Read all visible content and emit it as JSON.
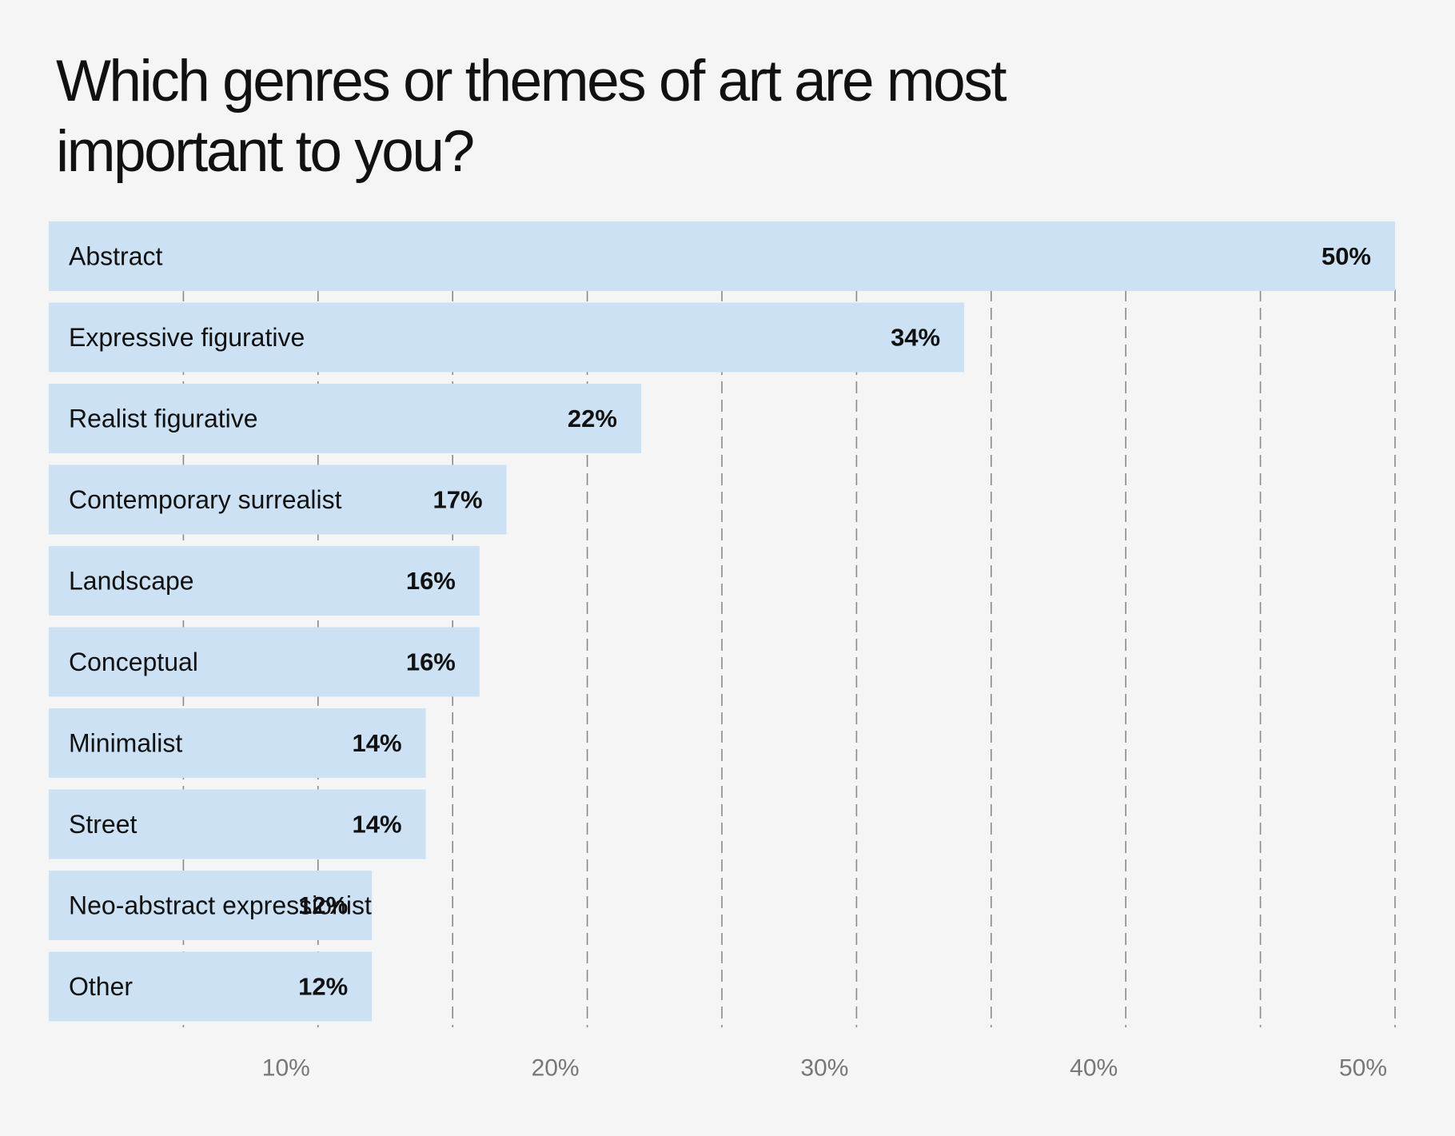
{
  "chart_data": {
    "type": "bar",
    "orientation": "horizontal",
    "title": "Which genres or themes of art are most important to you?",
    "categories": [
      "Abstract",
      "Expressive figurative",
      "Realist figurative",
      "Contemporary surrealist",
      "Landscape",
      "Conceptual",
      "Minimalist",
      "Street",
      "Neo-abstract expressionist",
      "Other"
    ],
    "values": [
      50,
      34,
      22,
      17,
      16,
      16,
      14,
      14,
      12,
      12
    ],
    "value_labels": [
      "50%",
      "34%",
      "22%",
      "17%",
      "16%",
      "16%",
      "14%",
      "14%",
      "12%",
      "12%"
    ],
    "x_ticks": [
      10,
      20,
      30,
      40,
      50
    ],
    "x_tick_labels": [
      "10%",
      "20%",
      "30%",
      "40%",
      "50%"
    ],
    "xlim": [
      0,
      50
    ],
    "grid": "vertical dashed",
    "bar_color": "#cce1f4",
    "grid_color": "#8a8a8a",
    "tick_label_color": "#777777",
    "text_color": "#111111"
  }
}
